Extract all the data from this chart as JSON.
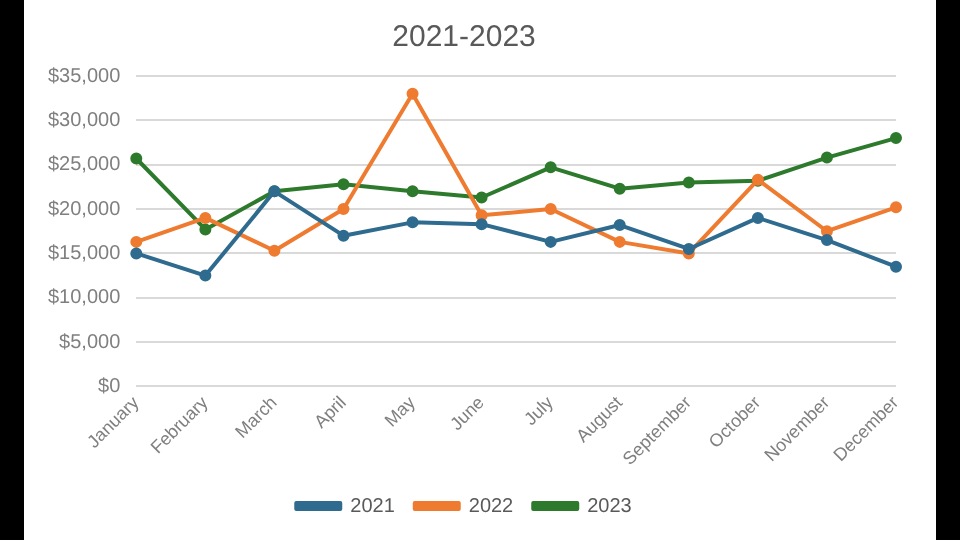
{
  "chart_data": {
    "type": "line",
    "title": "2021-2023",
    "categories": [
      "January",
      "February",
      "March",
      "April",
      "May",
      "June",
      "July",
      "August",
      "September",
      "October",
      "November",
      "December"
    ],
    "series": [
      {
        "name": "2021",
        "color": "#2e6b8f",
        "values": [
          15000,
          12500,
          22000,
          17000,
          18500,
          18300,
          16300,
          18200,
          15500,
          19000,
          16500,
          13500
        ]
      },
      {
        "name": "2022",
        "color": "#ee7b30",
        "values": [
          16300,
          19000,
          15300,
          20000,
          33000,
          19300,
          20000,
          16300,
          15000,
          23300,
          17500,
          20200
        ]
      },
      {
        "name": "2023",
        "color": "#2d7a2d",
        "values": [
          25700,
          17700,
          22000,
          22800,
          22000,
          21300,
          24700,
          22300,
          23000,
          23200,
          25800,
          28000
        ]
      }
    ],
    "ylim": [
      0,
      35000
    ],
    "yticks": [
      {
        "value": 0,
        "label": "$0"
      },
      {
        "value": 5000,
        "label": "$5,000"
      },
      {
        "value": 10000,
        "label": "$10,000"
      },
      {
        "value": 15000,
        "label": "$15,000"
      },
      {
        "value": 20000,
        "label": "$20,000"
      },
      {
        "value": 25000,
        "label": "$25,000"
      },
      {
        "value": 30000,
        "label": "$30,000"
      },
      {
        "value": 35000,
        "label": "$35,000"
      }
    ],
    "grid": "y",
    "legend": "bottom",
    "marker": "circle",
    "line_style": "solid"
  }
}
